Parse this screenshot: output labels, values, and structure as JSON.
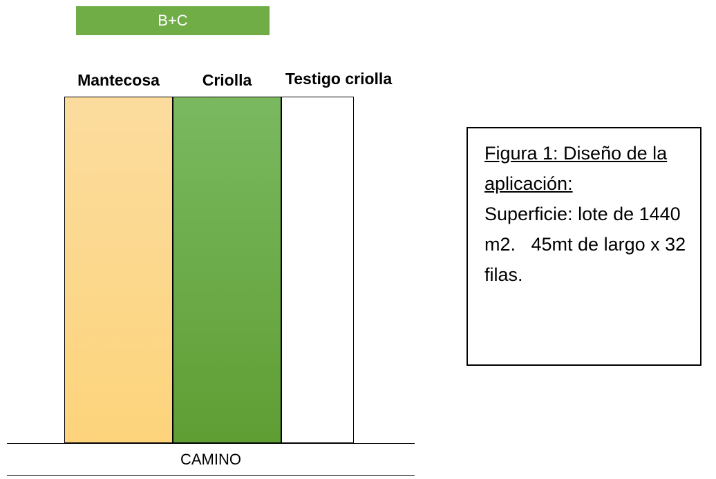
{
  "badge": {
    "label": "B+C",
    "color": "#70ad47"
  },
  "plots": [
    {
      "label": "Mantecosa",
      "color": "#fdd98c"
    },
    {
      "label": "Criolla",
      "color": "#6eaa47"
    },
    {
      "label": "Testigo criolla",
      "color": "#ffffff"
    }
  ],
  "road": {
    "label": "CAMINO"
  },
  "caption": {
    "title": "Figura 1: Diseño de la aplicación:",
    "body": "Superficie: lote de 1440 m2.   45mt de largo x 32 filas."
  }
}
